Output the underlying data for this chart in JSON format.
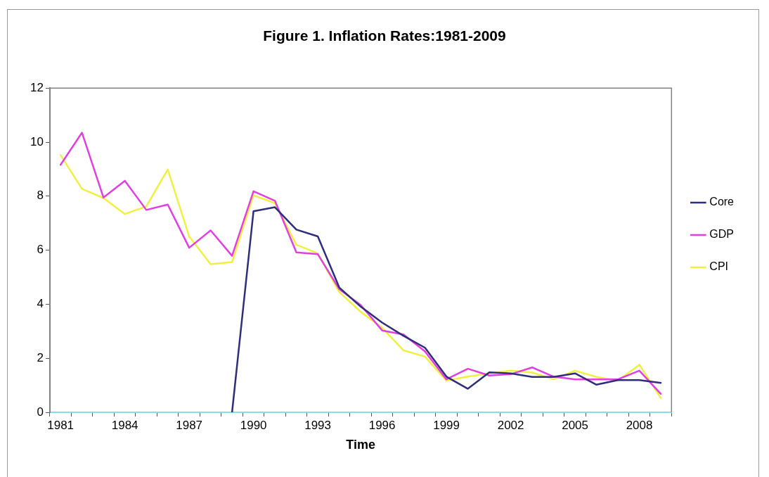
{
  "chart_data": {
    "type": "line",
    "title": "Figure 1. Inflation Rates:1981-2009",
    "xlabel": "Time",
    "categories": [
      "1981",
      null,
      null,
      "1984",
      null,
      null,
      "1987",
      null,
      null,
      "1990",
      null,
      null,
      "1993",
      null,
      null,
      "1996",
      null,
      null,
      "1999",
      null,
      null,
      "2002",
      null,
      null,
      "2005",
      null,
      null,
      "2008",
      null
    ],
    "series": [
      {
        "name": "Core",
        "color": "#2e2e7a",
        "values": [
          null,
          null,
          null,
          null,
          null,
          null,
          null,
          null,
          0,
          7.44,
          7.59,
          6.76,
          6.51,
          4.62,
          3.91,
          3.32,
          2.83,
          2.39,
          1.32,
          0.87,
          1.48,
          1.44,
          1.31,
          1.31,
          1.44,
          1.02,
          1.19,
          1.19,
          1.09
        ]
      },
      {
        "name": "GDP",
        "color": "#e040e0",
        "values": [
          9.16,
          10.35,
          7.95,
          8.57,
          7.49,
          7.69,
          6.09,
          6.73,
          5.79,
          8.18,
          7.83,
          5.92,
          5.85,
          4.56,
          3.97,
          3.03,
          2.88,
          2.25,
          1.22,
          1.61,
          1.36,
          1.41,
          1.66,
          1.32,
          1.22,
          1.22,
          1.22,
          1.54,
          0.68
        ]
      },
      {
        "name": "CPI",
        "color": "#f0f040",
        "values": [
          9.52,
          8.27,
          7.93,
          7.34,
          7.62,
          8.99,
          6.51,
          5.48,
          5.56,
          8.03,
          7.74,
          6.2,
          5.88,
          4.45,
          3.72,
          3.13,
          2.29,
          2.06,
          1.17,
          1.32,
          1.44,
          1.54,
          1.47,
          1.22,
          1.54,
          1.31,
          1.17,
          1.76,
          0.53
        ]
      }
    ],
    "ylim": [
      0,
      12
    ],
    "yticks": [
      0,
      2,
      4,
      6,
      8,
      10,
      12
    ],
    "grid": false,
    "legend": "right",
    "marker": "none",
    "line_style": "solid"
  }
}
